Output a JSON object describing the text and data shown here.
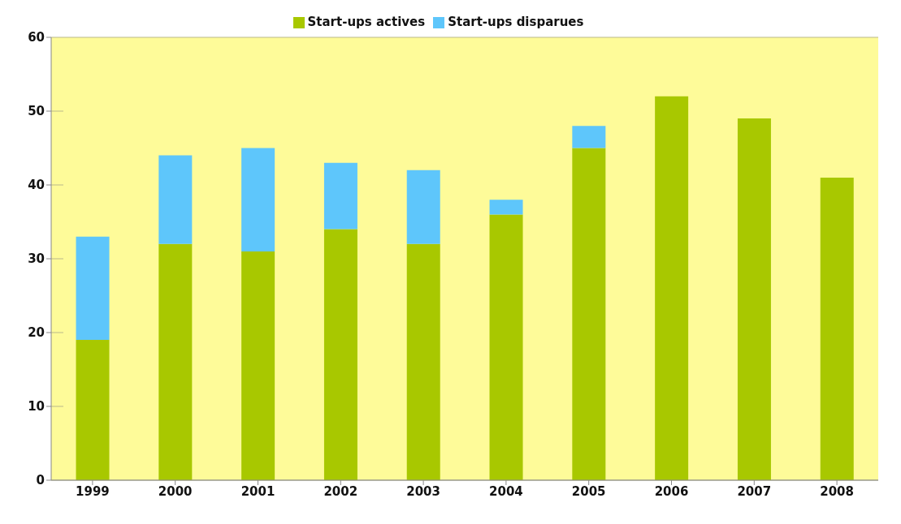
{
  "chart_data": {
    "type": "bar",
    "stacked": true,
    "categories": [
      "1999",
      "2000",
      "2001",
      "2002",
      "2003",
      "2004",
      "2005",
      "2006",
      "2007",
      "2008"
    ],
    "series": [
      {
        "name": "Start-ups actives",
        "color": "#a8c800",
        "values": [
          19,
          32,
          31,
          34,
          32,
          36,
          45,
          52,
          49,
          41
        ]
      },
      {
        "name": "Start-ups disparues",
        "color": "#5ec6fb",
        "values": [
          14,
          12,
          14,
          9,
          10,
          2,
          3,
          0,
          0,
          0
        ]
      }
    ],
    "ylim": [
      0,
      60
    ],
    "yticks": [
      0,
      10,
      20,
      30,
      40,
      50,
      60
    ],
    "grid": "y",
    "legend": "top"
  }
}
